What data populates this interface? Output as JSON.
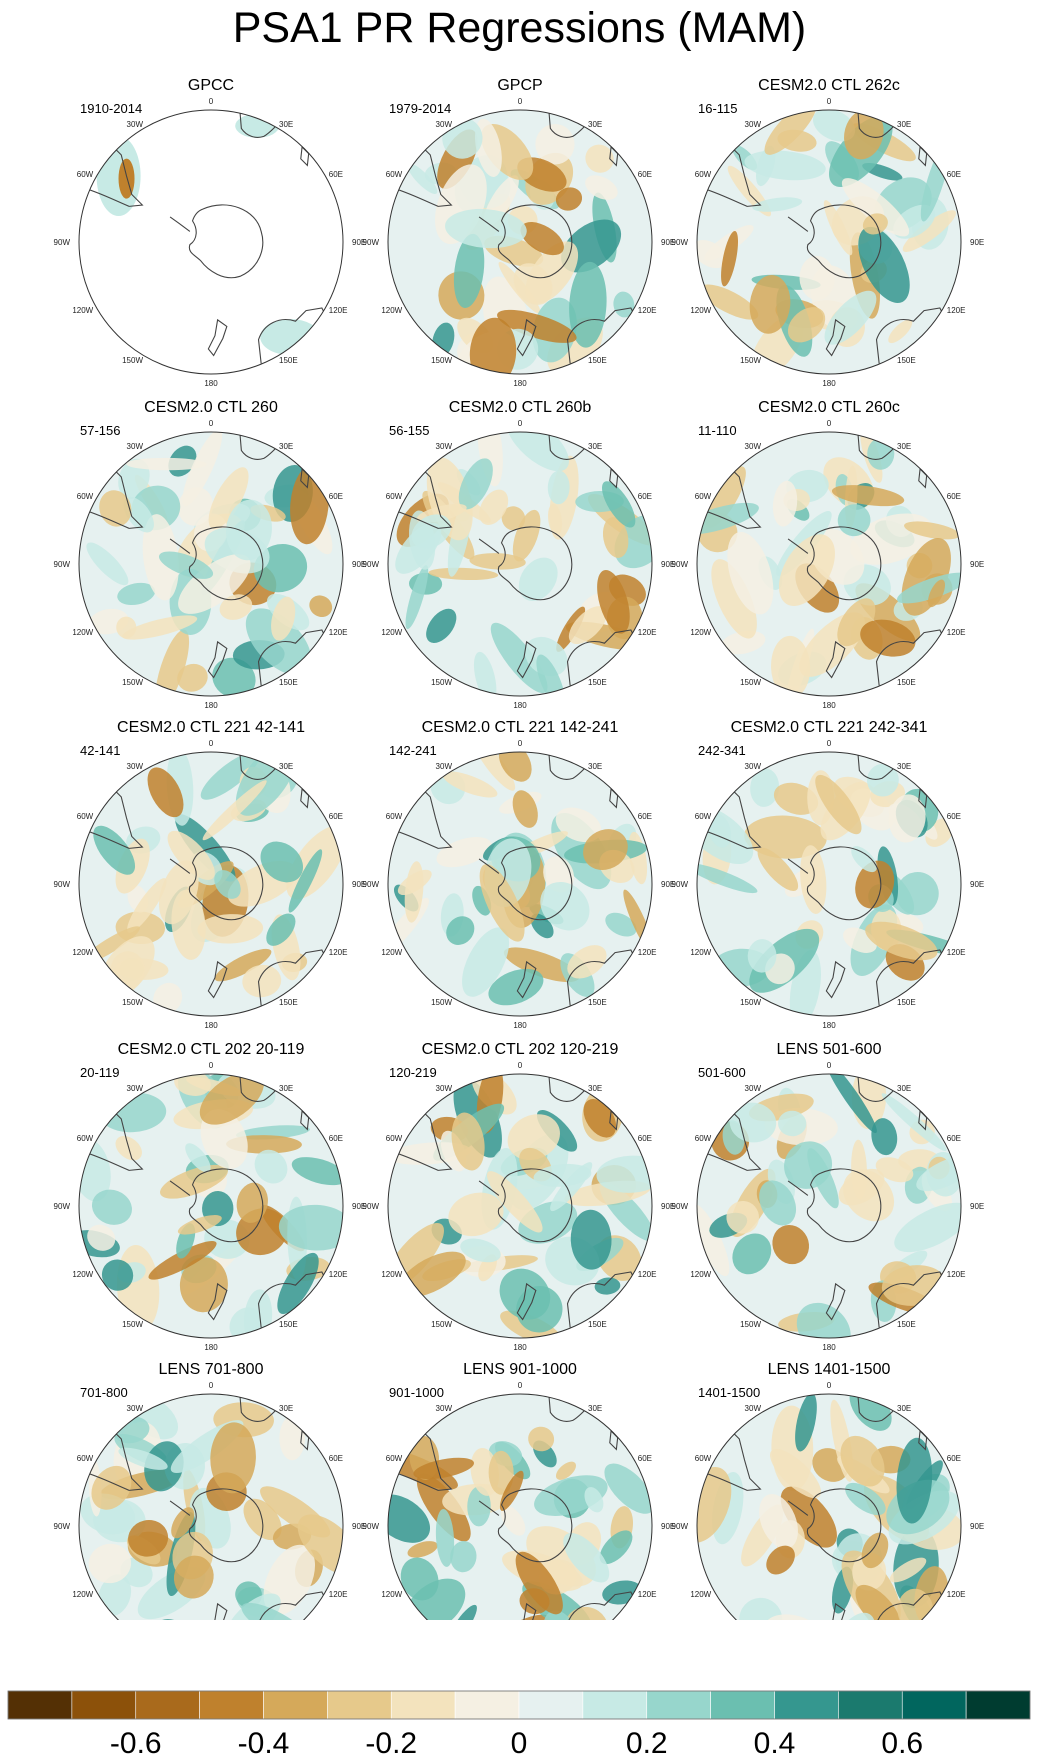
{
  "title": "PSA1 PR Regressions (MAM)",
  "longitude_labels": [
    "0",
    "30E",
    "60E",
    "90E",
    "120E",
    "150E",
    "180",
    "150W",
    "120W",
    "90W",
    "60W",
    "30W"
  ],
  "panels": [
    {
      "title": "GPCC",
      "years": "1910-2014",
      "dry_mask": true
    },
    {
      "title": "GPCP",
      "years": "1979-2014"
    },
    {
      "title": "CESM2.0 CTL 262c",
      "years": "16-115"
    },
    {
      "title": "CESM2.0 CTL 260",
      "years": "57-156"
    },
    {
      "title": "CESM2.0 CTL 260b",
      "years": "56-155"
    },
    {
      "title": "CESM2.0 CTL 260c",
      "years": "11-110"
    },
    {
      "title": "CESM2.0 CTL 221 42-141",
      "years": "42-141"
    },
    {
      "title": "CESM2.0 CTL 221 142-241",
      "years": "142-241"
    },
    {
      "title": "CESM2.0 CTL 221 242-341",
      "years": "242-341"
    },
    {
      "title": "CESM2.0 CTL 202 20-119",
      "years": "20-119"
    },
    {
      "title": "CESM2.0 CTL 202 120-219",
      "years": "120-219"
    },
    {
      "title": "LENS 501-600",
      "years": "501-600"
    },
    {
      "title": "LENS 701-800",
      "years": "701-800"
    },
    {
      "title": "LENS 901-1000",
      "years": "901-1000"
    },
    {
      "title": "LENS 1401-1500",
      "years": "1401-1500"
    }
  ],
  "colorbar": {
    "colors": [
      "#543005",
      "#8c510a",
      "#a96a1c",
      "#bf812d",
      "#d5a95a",
      "#e6c98b",
      "#f3e3bd",
      "#f5f0e3",
      "#e6f1f0",
      "#c7eae5",
      "#97d6cc",
      "#6bbfb0",
      "#35978f",
      "#1b7a6e",
      "#01665e",
      "#003c30"
    ],
    "labels": [
      "-0.6",
      "-0.4",
      "-0.2",
      "0",
      "0.2",
      "0.4",
      "0.6"
    ],
    "label_values": [
      -0.6,
      -0.4,
      -0.2,
      0,
      0.2,
      0.4,
      0.6
    ],
    "range": [
      -0.8,
      0.8
    ]
  }
}
